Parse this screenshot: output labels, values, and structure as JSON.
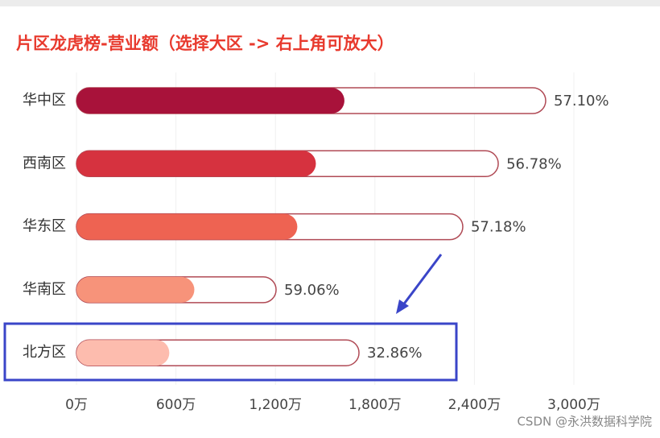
{
  "chart_data": {
    "type": "bullet-bar",
    "title": "片区龙虎榜-营业额（选择大区 -> 右上角可放大）",
    "categories": [
      "华中区",
      "西南区",
      "华东区",
      "华南区",
      "北方区"
    ],
    "values": [
      1616,
      1444,
      1332,
      711,
      560
    ],
    "targets": [
      2830,
      2544,
      2330,
      1204,
      1704
    ],
    "rate_labels": [
      "57.10%",
      "56.78%",
      "57.18%",
      "59.06%",
      "32.86%"
    ],
    "colors": [
      "#a8123a",
      "#d6323f",
      "#ee6352",
      "#f7937a",
      "#fdbcae"
    ],
    "target_color": "#b04a55",
    "xlim": [
      0,
      3000
    ],
    "xticks": [
      {
        "value": 0,
        "label": "0万"
      },
      {
        "value": 600,
        "label": "600万"
      },
      {
        "value": 1200,
        "label": "1,200万"
      },
      {
        "value": 1800,
        "label": "1,800万"
      },
      {
        "value": 2400,
        "label": "2,400万"
      },
      {
        "value": 3000,
        "label": "3,000万"
      }
    ],
    "grid": true,
    "watermark": "CSDN @永洪数据科学院"
  }
}
